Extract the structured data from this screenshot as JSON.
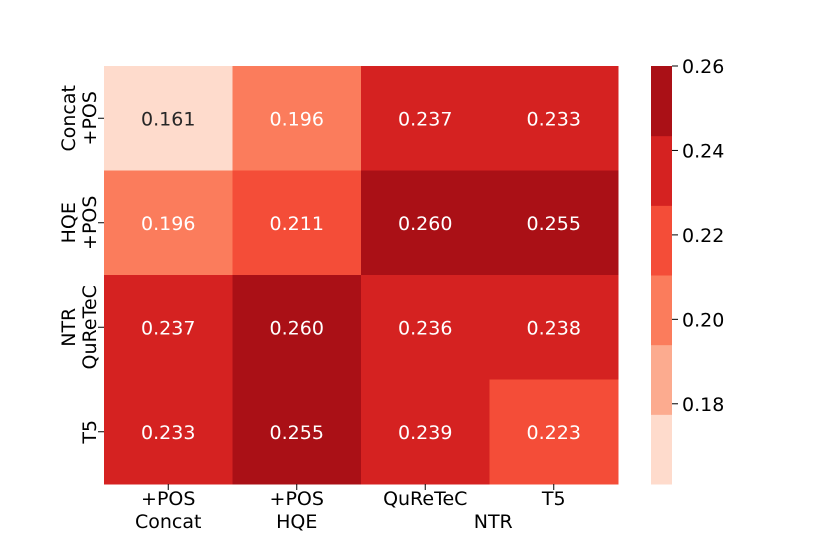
{
  "chart_data": {
    "type": "heatmap",
    "title": "",
    "row_labels": [
      [
        "Concat",
        "+POS"
      ],
      [
        "HQE",
        "+POS"
      ],
      [
        "NTR",
        "QuReTeC"
      ],
      [
        "T5"
      ]
    ],
    "col_labels": [
      [
        "+POS",
        "Concat"
      ],
      [
        "+POS",
        "HQE"
      ],
      [
        "QuReTeC",
        "NTR"
      ],
      [
        "T5"
      ]
    ],
    "values": [
      [
        0.161,
        0.196,
        0.237,
        0.233
      ],
      [
        0.196,
        0.211,
        0.26,
        0.255
      ],
      [
        0.237,
        0.26,
        0.236,
        0.238
      ],
      [
        0.233,
        0.255,
        0.239,
        0.223
      ]
    ],
    "value_labels": [
      [
        "0.161",
        "0.196",
        "0.237",
        "0.233"
      ],
      [
        "0.196",
        "0.211",
        "0.260",
        "0.255"
      ],
      [
        "0.237",
        "0.260",
        "0.236",
        "0.238"
      ],
      [
        "0.233",
        "0.255",
        "0.239",
        "0.223"
      ]
    ],
    "colorbar": {
      "ticks": [
        "0.18",
        "0.20",
        "0.22",
        "0.24",
        "0.26"
      ],
      "tick_values": [
        0.18,
        0.2,
        0.22,
        0.24,
        0.26
      ],
      "vmin": 0.161,
      "vmax": 0.26,
      "levels": 6,
      "colors": [
        "#fedbcc",
        "#fcab8f",
        "#fb7c5c",
        "#f44d38",
        "#d52221",
        "#aa1016"
      ],
      "position": "right"
    },
    "colormap": "Reds (6 discrete levels)",
    "text_colors": {
      "light": "#ffffff",
      "dark": "#262626"
    }
  }
}
